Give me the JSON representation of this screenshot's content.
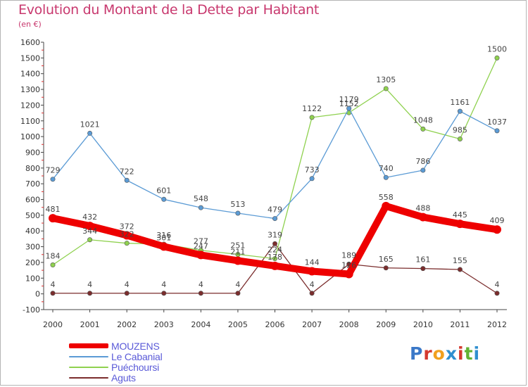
{
  "title": "Evolution du Montant de la Dette par Habitant",
  "subtitle": "(en €)",
  "logo": {
    "text": "Proxiti",
    "colors": [
      "#3a78c8",
      "#d4392f",
      "#f1a01e",
      "#2f8fcf",
      "#d4392f",
      "#62b233",
      "#2f8fcf"
    ]
  },
  "chart_data": {
    "type": "line",
    "x": [
      "2000",
      "2001",
      "2002",
      "2003",
      "2004",
      "2005",
      "2006",
      "2007",
      "2008",
      "2009",
      "2010",
      "2011",
      "2012"
    ],
    "ylim": [
      -100,
      1600
    ],
    "yticks": [
      -100,
      0,
      100,
      200,
      300,
      400,
      500,
      600,
      700,
      800,
      900,
      1000,
      1100,
      1200,
      1300,
      1400,
      1500,
      1600
    ],
    "grid": false,
    "legend_position": "bottom-left",
    "series": [
      {
        "name": "MOUZENS",
        "color": "#ee0000",
        "values": [
          481,
          432,
          372,
          301,
          247,
          211,
          178,
          144,
          126,
          558,
          488,
          445,
          409
        ]
      },
      {
        "name": "Le Cabanial",
        "color": "#5b9bd5",
        "values": [
          729,
          1021,
          722,
          601,
          548,
          513,
          479,
          733,
          1179,
          740,
          786,
          1161,
          1037
        ]
      },
      {
        "name": "Puéchoursi",
        "color": "#8fd14f",
        "values": [
          184,
          344,
          322,
          316,
          277,
          251,
          224,
          1122,
          1152,
          1305,
          1048,
          985,
          1500
        ]
      },
      {
        "name": "Aguts",
        "color": "#7b2d2d",
        "values": [
          4,
          4,
          4,
          4,
          4,
          4,
          319,
          4,
          189,
          165,
          161,
          155,
          4
        ]
      }
    ]
  }
}
